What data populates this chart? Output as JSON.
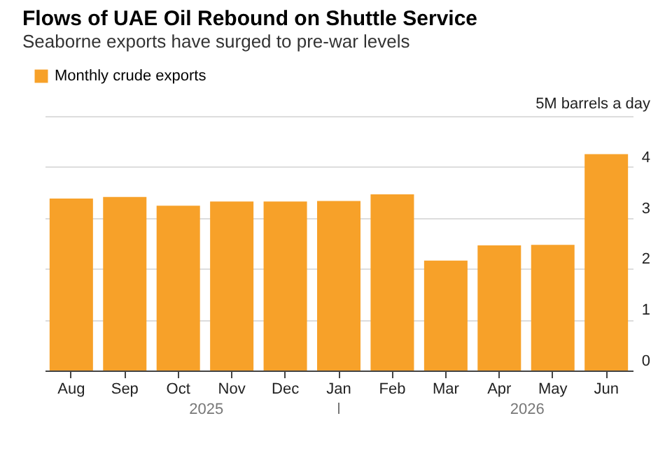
{
  "chart_data": {
    "type": "bar",
    "title": "Flows of UAE Oil Rebound on Shuttle Service",
    "subtitle": "Seaborne exports have surged to pre-war levels",
    "categories": [
      "Aug",
      "Sep",
      "Oct",
      "Nov",
      "Dec",
      "Jan",
      "Feb",
      "Mar",
      "Apr",
      "May",
      "Jun"
    ],
    "series": [
      {
        "name": "Monthly crude exports",
        "color": "#f7a129",
        "values": [
          3.38,
          3.41,
          3.24,
          3.32,
          3.32,
          3.33,
          3.46,
          2.16,
          2.46,
          2.47,
          4.25
        ]
      }
    ],
    "ylim": [
      0,
      5
    ],
    "yticks": [
      0,
      1,
      2,
      3,
      4,
      {
        "value": 5,
        "label": "5M barrels a day"
      }
    ],
    "annotations": [
      "2025",
      "2026"
    ],
    "grid": "y",
    "legend": "top left"
  }
}
